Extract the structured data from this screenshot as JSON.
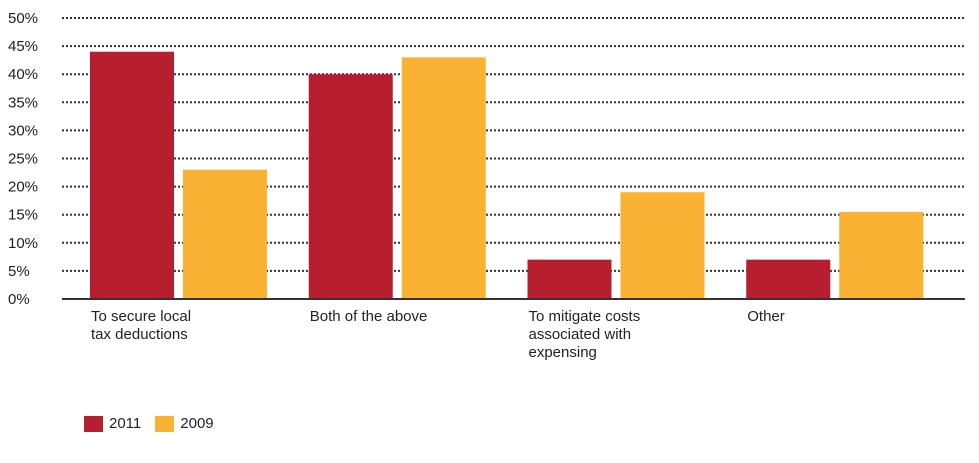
{
  "chart_data": {
    "type": "bar",
    "categories": [
      "To secure local\ntax deductions",
      "Both of the above",
      "To mitigate costs\nassociated with\nexpensing",
      "Other"
    ],
    "series": [
      {
        "name": "2011",
        "color": "#B71F31",
        "values": [
          44,
          40,
          7,
          7
        ]
      },
      {
        "name": "2009",
        "color": "#F9B233",
        "values": [
          23,
          43,
          19,
          15.5
        ]
      }
    ],
    "ylim": [
      0,
      50
    ],
    "yticks": [
      "0%",
      "5%",
      "10%",
      "15%",
      "20%",
      "25%",
      "30%",
      "35%",
      "40%",
      "45%",
      "50%"
    ],
    "grid": true,
    "legend": "bottom-left"
  }
}
